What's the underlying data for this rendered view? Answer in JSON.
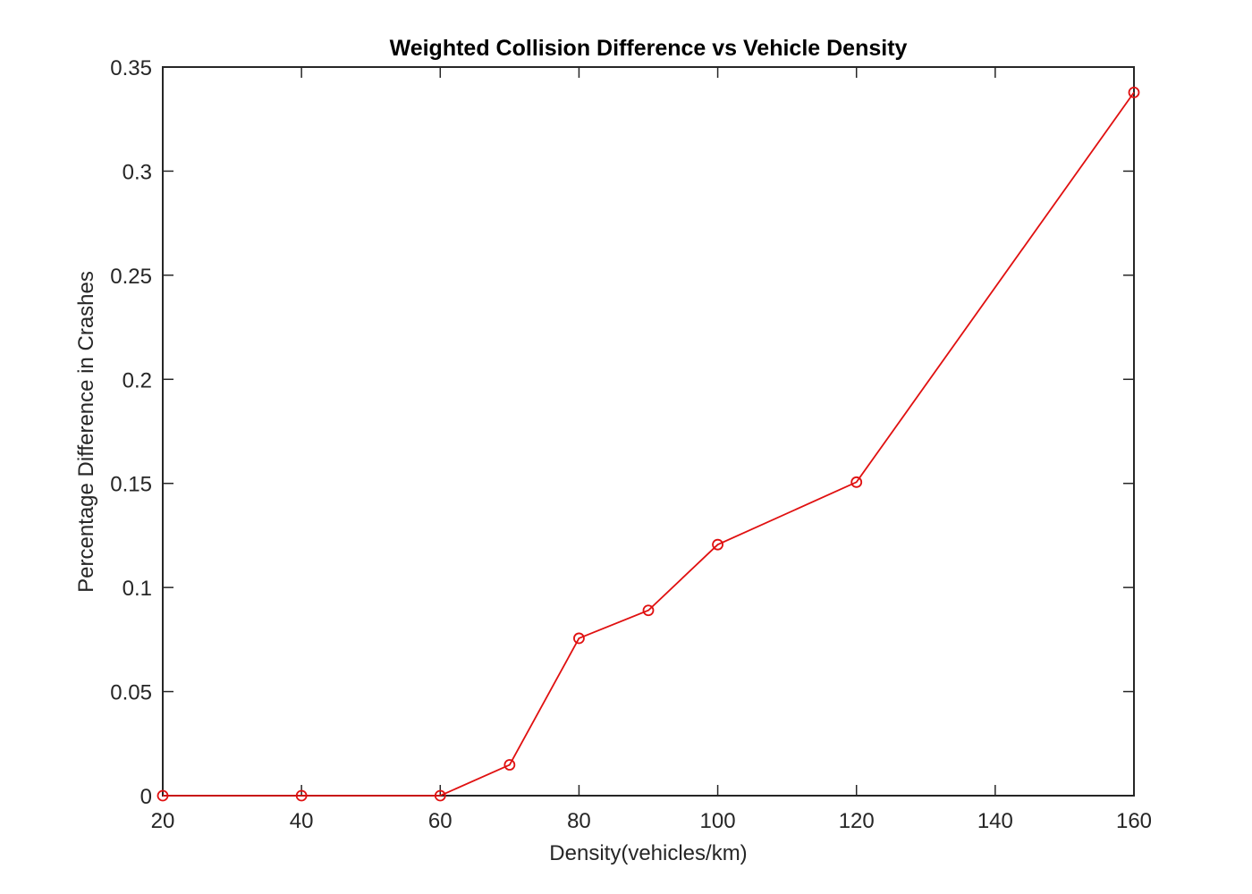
{
  "chart_data": {
    "type": "line",
    "title": "Weighted Collision Difference vs Vehicle Density",
    "xlabel": "Density(vehicles/km)",
    "ylabel": "Percentage Difference in Crashes",
    "xlim": [
      20,
      160
    ],
    "ylim": [
      0,
      0.35
    ],
    "xticks": [
      20,
      40,
      60,
      80,
      100,
      120,
      140,
      160
    ],
    "xtick_labels": [
      "20",
      "40",
      "60",
      "80",
      "100",
      "120",
      "140",
      "160"
    ],
    "yticks": [
      0,
      0.05,
      0.1,
      0.15,
      0.2,
      0.25,
      0.3,
      0.35
    ],
    "ytick_labels": [
      "0",
      "0.05",
      "0.1",
      "0.15",
      "0.2",
      "0.25",
      "0.3",
      "0.35"
    ],
    "grid": false,
    "series": [
      {
        "x": [
          20,
          40,
          60,
          70,
          80,
          90,
          100,
          120,
          160
        ],
        "y": [
          0,
          0,
          0,
          0.0148,
          0.0756,
          0.089,
          0.1206,
          0.1506,
          0.3378
        ],
        "color": "#e01010",
        "marker": "circle"
      }
    ]
  }
}
